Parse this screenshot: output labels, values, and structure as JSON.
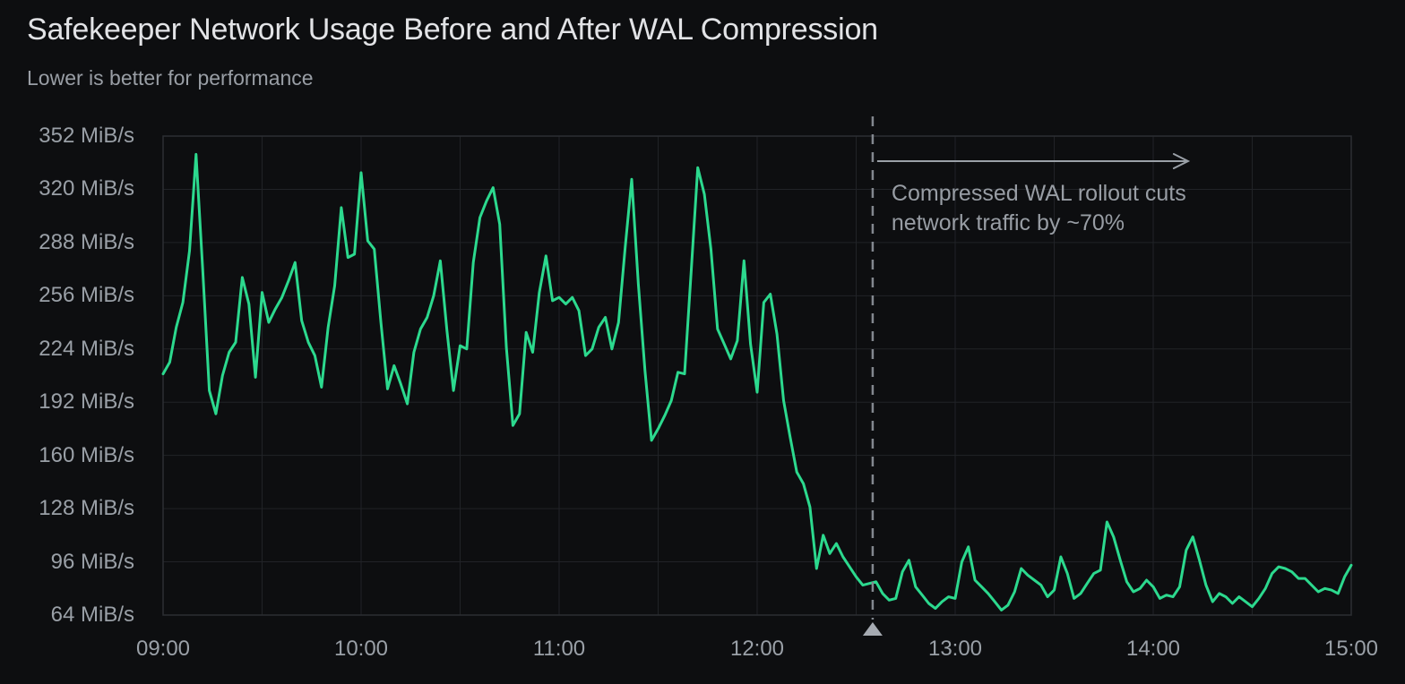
{
  "header": {
    "title": "Safekeeper Network Usage Before and After WAL Compression",
    "subtitle": "Lower is better for performance"
  },
  "colors": {
    "background": "#0d0e10",
    "grid": "#212327",
    "plot_border": "#2c2e32",
    "series_green": "#2cd98e",
    "annotation_dash": "#83888f",
    "annotation_marker": "#a6abb2",
    "arrow": "#9aa0a7",
    "title_text": "#e2e3e6",
    "subtitle_text": "#999ea5",
    "tick_text": "#9aa0a7",
    "annotation_text": "#989da4"
  },
  "chart_data": {
    "type": "line",
    "title": "Safekeeper Network Usage Before and After WAL Compression",
    "subtitle": "Lower is better for performance",
    "unit": "MiB/s",
    "ylim": [
      64,
      352
    ],
    "y_ticks": [
      352,
      320,
      288,
      256,
      224,
      192,
      160,
      128,
      96,
      64
    ],
    "x_ticks": [
      "09:00",
      "10:00",
      "11:00",
      "12:00",
      "13:00",
      "14:00",
      "15:00"
    ],
    "x_total_min": 360,
    "sample_step_min": 2,
    "grid_minor_x_min": 30,
    "legend": "none",
    "series": [
      {
        "name": "Safekeeper network usage",
        "color": "#2cd98e",
        "values": [
          209,
          216,
          237,
          252,
          283,
          341,
          272,
          199,
          185,
          208,
          222,
          228,
          267,
          251,
          207,
          258,
          240,
          248,
          255,
          265,
          276,
          241,
          228,
          220,
          201,
          237,
          262,
          309,
          279,
          281,
          330,
          289,
          284,
          240,
          200,
          214,
          203,
          191,
          222,
          236,
          243,
          256,
          277,
          235,
          199,
          226,
          224,
          276,
          303,
          313,
          321,
          299,
          225,
          178,
          185,
          234,
          222,
          258,
          280,
          253,
          255,
          251,
          255,
          247,
          220,
          224,
          237,
          243,
          224,
          240,
          285,
          326,
          263,
          211,
          169,
          176,
          184,
          193,
          210,
          209,
          270,
          333,
          317,
          284,
          236,
          227,
          218,
          229,
          277,
          227,
          198,
          252,
          257,
          233,
          193,
          171,
          150,
          143,
          129,
          92,
          112,
          101,
          107,
          99,
          93,
          87,
          82,
          83,
          84,
          77,
          73,
          74,
          90,
          97,
          81,
          76,
          71,
          68,
          72,
          75,
          74,
          96,
          105,
          85,
          81,
          77,
          72,
          67,
          70,
          78,
          92,
          88,
          85,
          82,
          75,
          79,
          99,
          89,
          74,
          77,
          83,
          89,
          91,
          120,
          111,
          97,
          84,
          78,
          80,
          85,
          81,
          74,
          76,
          75,
          81,
          103,
          111,
          97,
          82,
          72,
          77,
          75,
          71,
          75,
          72,
          69,
          74,
          80,
          89,
          93,
          92,
          90,
          86,
          86,
          82,
          78,
          80,
          79,
          77,
          87,
          94
        ]
      }
    ],
    "annotation": {
      "line1": "Compressed WAL rollout cuts",
      "line2": "network traffic by ~70%",
      "x_min": 215
    }
  }
}
